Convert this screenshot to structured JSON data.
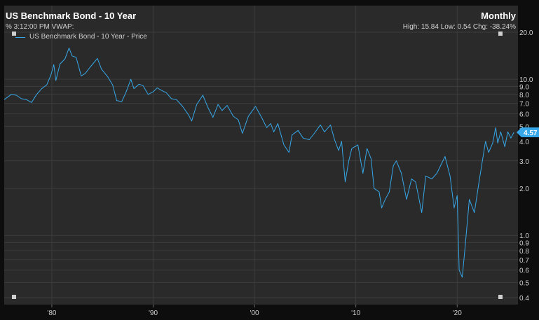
{
  "header": {
    "title": "US Benchmark Bond - 10 Year",
    "period": "Monthly",
    "subtitle": "% 3:12:00 PM VWAP:",
    "stats": "High: 15.84 Low: 0.54 Chg: -38.24%"
  },
  "legend": {
    "series_label": "US Benchmark Bond - 10 Year - Price"
  },
  "colors": {
    "background": "#0d0d0d",
    "plot_background": "#2a2a2a",
    "line": "#36a7e8",
    "grid": "#3c3c3c",
    "text": "#d0d0d0"
  },
  "chart_data": {
    "type": "line",
    "title": "US Benchmark Bond - 10 Year",
    "y_scale": "log",
    "grid": true,
    "legend_position": "top-left",
    "ylim": [
      0.4,
      20
    ],
    "xlim": [
      1975.3,
      2026.0
    ],
    "y_ticks": [
      {
        "v": 0.4,
        "label": "0.4"
      },
      {
        "v": 0.5,
        "label": "0.5"
      },
      {
        "v": 0.6,
        "label": "0.6"
      },
      {
        "v": 0.7,
        "label": "0.7"
      },
      {
        "v": 0.8,
        "label": "0.8"
      },
      {
        "v": 0.9,
        "label": "0.9"
      },
      {
        "v": 1.0,
        "label": "1.0"
      },
      {
        "v": 2.0,
        "label": "2.0"
      },
      {
        "v": 3.0,
        "label": "3.0"
      },
      {
        "v": 4.0,
        "label": "4.0"
      },
      {
        "v": 5.0,
        "label": "5.0"
      },
      {
        "v": 6.0,
        "label": "6.0"
      },
      {
        "v": 7.0,
        "label": "7.0"
      },
      {
        "v": 8.0,
        "label": "8.0"
      },
      {
        "v": 9.0,
        "label": "9.0"
      },
      {
        "v": 10.0,
        "label": "10.0"
      },
      {
        "v": 20.0,
        "label": "20.0"
      }
    ],
    "x_ticks": [
      {
        "v": 1980,
        "label": "'80"
      },
      {
        "v": 1990,
        "label": "'90"
      },
      {
        "v": 2000,
        "label": "'00"
      },
      {
        "v": 2010,
        "label": "'10"
      },
      {
        "v": 2020,
        "label": "'20"
      }
    ],
    "last_value_label": "4.57",
    "last_value": 4.57,
    "series": [
      {
        "name": "US Benchmark Bond - 10 Year - Price",
        "color": "#36a7e8",
        "points": [
          [
            1975.3,
            7.4
          ],
          [
            1976.0,
            8.0
          ],
          [
            1976.5,
            7.9
          ],
          [
            1977.0,
            7.5
          ],
          [
            1977.5,
            7.4
          ],
          [
            1978.0,
            7.1
          ],
          [
            1978.5,
            8.0
          ],
          [
            1979.0,
            8.7
          ],
          [
            1979.5,
            9.2
          ],
          [
            1979.9,
            10.6
          ],
          [
            1980.2,
            12.4
          ],
          [
            1980.4,
            9.8
          ],
          [
            1980.8,
            12.5
          ],
          [
            1981.3,
            13.5
          ],
          [
            1981.7,
            15.84
          ],
          [
            1982.0,
            14.1
          ],
          [
            1982.4,
            13.8
          ],
          [
            1982.9,
            10.5
          ],
          [
            1983.3,
            10.9
          ],
          [
            1983.8,
            12.0
          ],
          [
            1984.5,
            13.6
          ],
          [
            1984.9,
            11.6
          ],
          [
            1985.5,
            10.4
          ],
          [
            1986.0,
            9.2
          ],
          [
            1986.4,
            7.3
          ],
          [
            1986.9,
            7.2
          ],
          [
            1987.3,
            8.2
          ],
          [
            1987.8,
            10.0
          ],
          [
            1988.1,
            8.7
          ],
          [
            1988.6,
            9.3
          ],
          [
            1989.0,
            9.1
          ],
          [
            1989.5,
            8.0
          ],
          [
            1990.0,
            8.3
          ],
          [
            1990.4,
            8.8
          ],
          [
            1990.8,
            8.5
          ],
          [
            1991.3,
            8.2
          ],
          [
            1991.8,
            7.5
          ],
          [
            1992.3,
            7.4
          ],
          [
            1992.9,
            6.7
          ],
          [
            1993.5,
            5.9
          ],
          [
            1993.8,
            5.4
          ],
          [
            1994.3,
            6.9
          ],
          [
            1994.9,
            7.9
          ],
          [
            1995.4,
            6.6
          ],
          [
            1995.9,
            5.7
          ],
          [
            1996.4,
            6.9
          ],
          [
            1996.8,
            6.3
          ],
          [
            1997.3,
            6.8
          ],
          [
            1997.9,
            5.8
          ],
          [
            1998.4,
            5.5
          ],
          [
            1998.8,
            4.5
          ],
          [
            1999.4,
            5.8
          ],
          [
            1999.8,
            6.3
          ],
          [
            2000.1,
            6.7
          ],
          [
            2000.7,
            5.7
          ],
          [
            2001.2,
            4.9
          ],
          [
            2001.6,
            5.2
          ],
          [
            2001.9,
            4.6
          ],
          [
            2002.3,
            5.2
          ],
          [
            2002.9,
            3.8
          ],
          [
            2003.4,
            3.4
          ],
          [
            2003.7,
            4.4
          ],
          [
            2004.3,
            4.7
          ],
          [
            2004.8,
            4.2
          ],
          [
            2005.4,
            4.1
          ],
          [
            2005.9,
            4.5
          ],
          [
            2006.5,
            5.1
          ],
          [
            2006.9,
            4.6
          ],
          [
            2007.5,
            5.1
          ],
          [
            2007.9,
            4.1
          ],
          [
            2008.3,
            3.5
          ],
          [
            2008.6,
            4.0
          ],
          [
            2008.95,
            2.2
          ],
          [
            2009.3,
            3.0
          ],
          [
            2009.6,
            3.6
          ],
          [
            2010.2,
            3.8
          ],
          [
            2010.7,
            2.5
          ],
          [
            2011.1,
            3.6
          ],
          [
            2011.5,
            3.1
          ],
          [
            2011.8,
            2.0
          ],
          [
            2012.3,
            1.9
          ],
          [
            2012.55,
            1.5
          ],
          [
            2012.9,
            1.7
          ],
          [
            2013.3,
            1.9
          ],
          [
            2013.7,
            2.8
          ],
          [
            2014.0,
            3.0
          ],
          [
            2014.5,
            2.5
          ],
          [
            2015.0,
            1.7
          ],
          [
            2015.5,
            2.3
          ],
          [
            2015.9,
            2.2
          ],
          [
            2016.5,
            1.4
          ],
          [
            2016.9,
            2.4
          ],
          [
            2017.5,
            2.3
          ],
          [
            2018.0,
            2.5
          ],
          [
            2018.8,
            3.2
          ],
          [
            2019.3,
            2.4
          ],
          [
            2019.7,
            1.5
          ],
          [
            2020.0,
            1.8
          ],
          [
            2020.2,
            0.6
          ],
          [
            2020.5,
            0.54
          ],
          [
            2020.75,
            0.8
          ],
          [
            2021.2,
            1.7
          ],
          [
            2021.7,
            1.4
          ],
          [
            2022.2,
            2.3
          ],
          [
            2022.8,
            4.0
          ],
          [
            2023.1,
            3.4
          ],
          [
            2023.5,
            3.9
          ],
          [
            2023.8,
            4.9
          ],
          [
            2024.0,
            3.9
          ],
          [
            2024.3,
            4.6
          ],
          [
            2024.7,
            3.7
          ],
          [
            2025.0,
            4.6
          ],
          [
            2025.3,
            4.2
          ],
          [
            2025.6,
            4.57
          ]
        ]
      }
    ]
  }
}
